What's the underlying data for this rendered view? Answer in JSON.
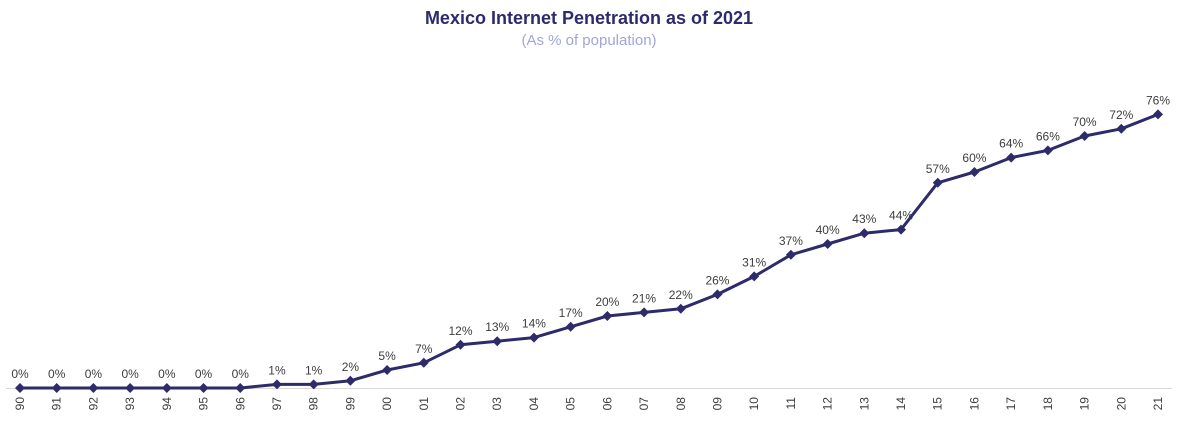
{
  "chart": {
    "title": "Mexico Internet Penetration as of 2021",
    "subtitle": "(As % of population)"
  },
  "chart_data": {
    "type": "line",
    "title": "Mexico Internet Penetration as of 2021",
    "subtitle": "(As % of population)",
    "xlabel": "",
    "ylabel": "",
    "categories": [
      "90",
      "91",
      "92",
      "93",
      "94",
      "95",
      "96",
      "97",
      "98",
      "99",
      "00",
      "01",
      "02",
      "03",
      "04",
      "05",
      "06",
      "07",
      "08",
      "09",
      "10",
      "11",
      "12",
      "13",
      "14",
      "15",
      "16",
      "17",
      "18",
      "19",
      "20",
      "21"
    ],
    "values": [
      0,
      0,
      0,
      0,
      0,
      0,
      0,
      1,
      1,
      2,
      5,
      7,
      12,
      13,
      14,
      17,
      20,
      21,
      22,
      26,
      31,
      37,
      40,
      43,
      44,
      57,
      60,
      64,
      66,
      70,
      72,
      76
    ],
    "unit": "%",
    "data_labels": true,
    "marker": "diamond",
    "ylim": [
      0,
      80
    ],
    "grid": false,
    "legend": false,
    "colors": {
      "line": "#2e2b6b",
      "marker": "#2e2b6b",
      "title": "#2d2a6e",
      "subtitle": "#a2a5d7",
      "axis_line": "#d9d9d9",
      "data_label": "#3d3d3d",
      "tick_label": "#3d3d3d"
    }
  }
}
